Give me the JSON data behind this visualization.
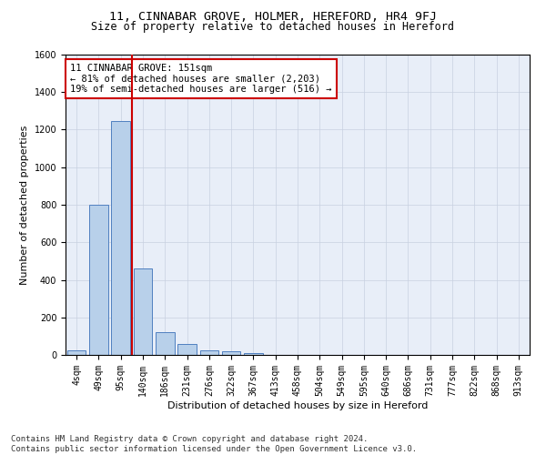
{
  "title": "11, CINNABAR GROVE, HOLMER, HEREFORD, HR4 9FJ",
  "subtitle": "Size of property relative to detached houses in Hereford",
  "xlabel": "Distribution of detached houses by size in Hereford",
  "ylabel": "Number of detached properties",
  "footer_line1": "Contains HM Land Registry data © Crown copyright and database right 2024.",
  "footer_line2": "Contains public sector information licensed under the Open Government Licence v3.0.",
  "annotation_line1": "11 CINNABAR GROVE: 151sqm",
  "annotation_line2": "← 81% of detached houses are smaller (2,203)",
  "annotation_line3": "19% of semi-detached houses are larger (516) →",
  "bar_labels": [
    "4sqm",
    "49sqm",
    "95sqm",
    "140sqm",
    "186sqm",
    "231sqm",
    "276sqm",
    "322sqm",
    "367sqm",
    "413sqm",
    "458sqm",
    "504sqm",
    "549sqm",
    "595sqm",
    "640sqm",
    "686sqm",
    "731sqm",
    "777sqm",
    "822sqm",
    "868sqm",
    "913sqm"
  ],
  "bar_values": [
    25,
    800,
    1245,
    460,
    120,
    58,
    22,
    18,
    12,
    0,
    0,
    0,
    0,
    0,
    0,
    0,
    0,
    0,
    0,
    0,
    0
  ],
  "bar_color": "#b8d0ea",
  "bar_edge_color": "#5080c0",
  "vline_color": "#cc0000",
  "ylim": [
    0,
    1600
  ],
  "yticks": [
    0,
    200,
    400,
    600,
    800,
    1000,
    1200,
    1400,
    1600
  ],
  "grid_color": "#c8d0e0",
  "background_color": "#e8eef8",
  "annotation_box_edge_color": "#cc0000",
  "title_fontsize": 9.5,
  "subtitle_fontsize": 8.5,
  "axis_label_fontsize": 8,
  "tick_fontsize": 7,
  "annotation_fontsize": 7.5,
  "footer_fontsize": 6.5
}
